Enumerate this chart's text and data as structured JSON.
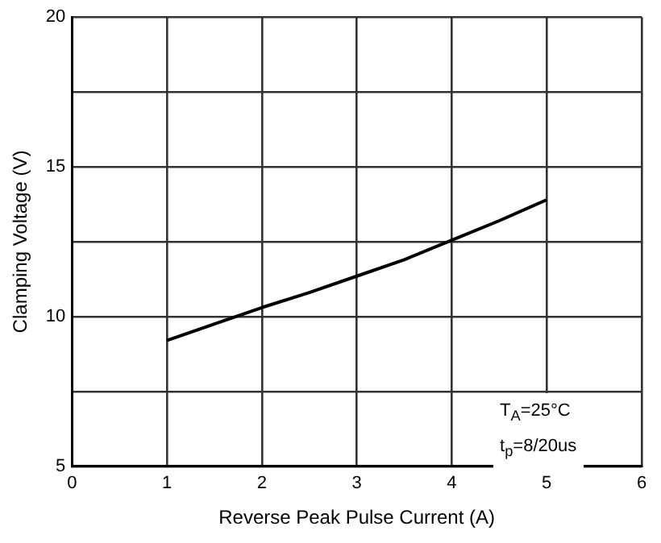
{
  "chart_data": {
    "type": "line",
    "xlabel": "Reverse Peak Pulse Current (A)",
    "ylabel": "Clamping Voltage (V)",
    "x": [
      1,
      1.5,
      2,
      2.5,
      3,
      3.5,
      4,
      4.5,
      5
    ],
    "series": [
      {
        "color": "#000000",
        "values": [
          9.2,
          9.75,
          10.3,
          10.8,
          11.35,
          11.9,
          12.55,
          13.2,
          13.9
        ]
      }
    ],
    "xlim": [
      0,
      6
    ],
    "xticks": [
      0,
      1,
      2,
      3,
      4,
      5,
      6
    ],
    "ylim": [
      5,
      20
    ],
    "yticks": [
      5,
      {
        "value": 7.5,
        "label": null
      },
      10,
      {
        "value": 12.5,
        "label": null
      },
      15,
      {
        "value": 17.5,
        "label": null
      },
      20
    ],
    "grid": true,
    "legend": false,
    "marker": "none",
    "line_style": "solid",
    "annotations": [
      "T$_{A}$=25°C",
      "t$_{p}$=8/20us"
    ]
  }
}
